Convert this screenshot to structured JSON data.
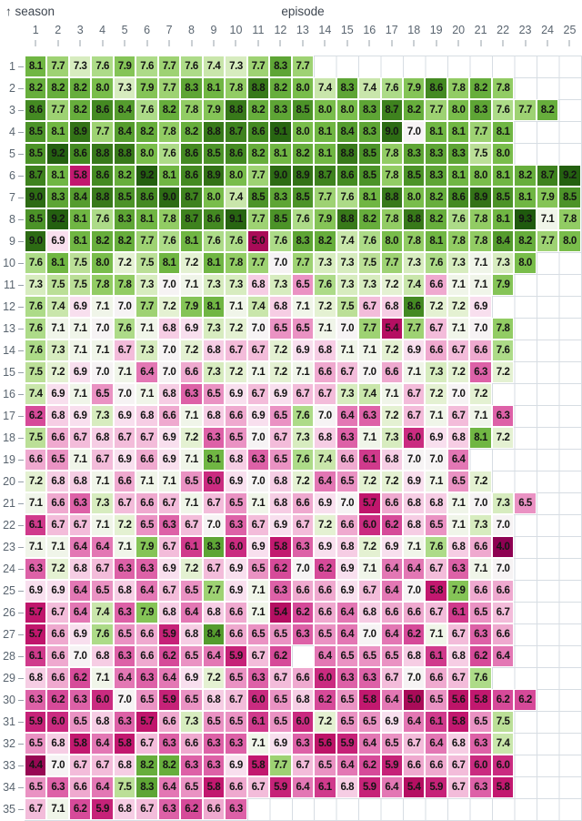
{
  "labels": {
    "season": "↑ season",
    "episode": "episode"
  },
  "chart_data": {
    "type": "heatmap",
    "x_label": "episode",
    "y_label": "season",
    "x_ticks": [
      1,
      2,
      3,
      4,
      5,
      6,
      7,
      8,
      9,
      10,
      11,
      12,
      13,
      14,
      15,
      16,
      17,
      18,
      19,
      20,
      21,
      22,
      23,
      24,
      25
    ],
    "y_ticks": [
      1,
      2,
      3,
      4,
      5,
      6,
      7,
      8,
      9,
      10,
      11,
      12,
      13,
      14,
      15,
      16,
      17,
      18,
      19,
      20,
      21,
      22,
      23,
      24,
      25,
      26,
      27,
      28,
      29,
      30,
      31,
      32,
      33,
      34,
      35
    ],
    "grid_on": true,
    "values": [
      [
        8.1,
        7.7,
        7.3,
        7.6,
        7.9,
        7.6,
        7.7,
        7.6,
        7.4,
        7.3,
        7.7,
        8.3,
        7.7
      ],
      [
        8.2,
        8.2,
        8.2,
        8.0,
        7.3,
        7.9,
        7.7,
        8.3,
        8.1,
        7.8,
        8.8,
        8.2,
        8.0,
        7.4,
        8.3,
        7.4,
        7.6,
        7.9,
        8.6,
        7.8,
        8.2,
        7.8
      ],
      [
        8.6,
        7.7,
        8.2,
        8.6,
        8.4,
        7.6,
        8.2,
        7.8,
        7.9,
        8.8,
        8.2,
        8.3,
        8.5,
        8.0,
        8.0,
        8.3,
        8.7,
        8.2,
        7.7,
        8.0,
        8.3,
        7.6,
        7.7,
        8.2
      ],
      [
        8.5,
        8.1,
        8.9,
        7.7,
        8.4,
        8.2,
        7.8,
        8.2,
        8.8,
        8.7,
        8.6,
        9.1,
        8.0,
        8.1,
        8.4,
        8.3,
        9.0,
        7.0,
        8.1,
        8.1,
        7.7,
        8.1
      ],
      [
        8.5,
        9.2,
        8.6,
        8.8,
        8.8,
        8.0,
        7.6,
        8.6,
        8.5,
        8.6,
        8.2,
        8.1,
        8.2,
        8.1,
        8.8,
        8.5,
        7.8,
        8.3,
        8.3,
        8.3,
        7.5,
        8.0
      ],
      [
        8.7,
        8.1,
        5.8,
        8.6,
        8.2,
        9.2,
        8.1,
        8.6,
        8.9,
        8.0,
        7.7,
        9.0,
        8.9,
        8.7,
        8.6,
        8.5,
        7.8,
        8.5,
        8.3,
        8.1,
        8.0,
        8.1,
        8.2,
        8.7,
        9.2
      ],
      [
        9.0,
        8.3,
        8.4,
        8.8,
        8.5,
        8.6,
        9.0,
        8.7,
        8.0,
        7.4,
        8.5,
        8.3,
        8.5,
        7.7,
        7.6,
        8.1,
        8.8,
        8.0,
        8.2,
        8.6,
        8.9,
        8.5,
        8.1,
        7.9,
        8.5
      ],
      [
        8.5,
        9.2,
        8.1,
        7.6,
        8.3,
        8.1,
        7.8,
        8.7,
        8.6,
        9.1,
        7.7,
        8.5,
        7.6,
        7.9,
        8.8,
        8.2,
        7.8,
        8.8,
        8.2,
        7.6,
        7.8,
        8.1,
        9.3,
        7.1,
        7.8
      ],
      [
        9.0,
        6.9,
        8.1,
        8.2,
        8.2,
        7.7,
        7.6,
        8.1,
        7.6,
        7.6,
        5.0,
        7.6,
        8.3,
        8.2,
        7.4,
        7.6,
        8.0,
        7.8,
        8.1,
        7.8,
        7.8,
        8.4,
        8.2,
        7.7,
        8.0
      ],
      [
        7.6,
        8.1,
        7.5,
        8.0,
        7.2,
        7.5,
        8.1,
        7.2,
        8.1,
        7.8,
        7.7,
        7.0,
        7.7,
        7.3,
        7.3,
        7.5,
        7.7,
        7.3,
        7.6,
        7.3,
        7.1,
        7.3,
        8.0
      ],
      [
        7.3,
        7.5,
        7.5,
        7.8,
        7.8,
        7.3,
        7.0,
        7.1,
        7.3,
        7.3,
        6.8,
        7.3,
        6.5,
        7.6,
        7.3,
        7.3,
        7.2,
        7.4,
        6.6,
        7.1,
        7.1,
        7.9
      ],
      [
        7.6,
        7.4,
        6.9,
        7.1,
        7.0,
        7.7,
        7.2,
        7.9,
        8.1,
        7.1,
        7.4,
        6.8,
        7.1,
        7.2,
        7.5,
        6.7,
        6.8,
        8.6,
        7.2,
        7.2,
        6.9
      ],
      [
        7.6,
        7.1,
        7.1,
        7.0,
        7.6,
        7.1,
        6.8,
        6.9,
        7.3,
        7.2,
        7.0,
        6.5,
        6.5,
        7.1,
        7.0,
        7.7,
        5.4,
        7.7,
        6.7,
        7.1,
        7.0,
        7.8
      ],
      [
        7.6,
        7.3,
        7.1,
        7.1,
        6.7,
        7.3,
        7.0,
        7.2,
        6.8,
        6.7,
        6.7,
        7.2,
        6.9,
        6.8,
        7.1,
        7.1,
        7.2,
        6.9,
        6.6,
        6.7,
        6.6,
        7.6
      ],
      [
        7.5,
        7.2,
        6.9,
        7.0,
        7.1,
        6.4,
        7.0,
        6.6,
        7.3,
        7.2,
        7.1,
        7.2,
        7.1,
        6.6,
        6.7,
        7.0,
        6.6,
        7.1,
        7.3,
        7.2,
        6.3,
        7.2
      ],
      [
        7.4,
        6.9,
        7.1,
        6.5,
        7.0,
        7.1,
        6.8,
        6.3,
        6.5,
        6.9,
        6.7,
        6.9,
        6.7,
        6.7,
        7.3,
        7.4,
        7.1,
        6.7,
        7.2,
        7.0,
        7.2
      ],
      [
        6.2,
        6.8,
        6.9,
        7.3,
        6.9,
        6.8,
        6.6,
        7.1,
        6.8,
        6.6,
        6.9,
        6.5,
        7.6,
        7.0,
        6.4,
        6.3,
        7.2,
        6.7,
        7.1,
        6.7,
        7.1,
        6.3
      ],
      [
        7.5,
        6.6,
        6.7,
        6.8,
        6.7,
        6.7,
        6.9,
        7.2,
        6.3,
        6.5,
        7.0,
        6.7,
        7.3,
        6.8,
        6.3,
        7.1,
        7.3,
        6.0,
        6.9,
        6.8,
        8.1,
        7.2
      ],
      [
        6.6,
        6.5,
        7.1,
        6.7,
        6.9,
        6.6,
        6.9,
        7.1,
        8.1,
        6.8,
        6.3,
        6.5,
        7.6,
        7.4,
        6.6,
        6.1,
        6.8,
        7.0,
        7.0,
        6.4
      ],
      [
        7.2,
        6.8,
        6.8,
        7.1,
        6.6,
        7.1,
        7.1,
        6.5,
        6.0,
        6.9,
        7.0,
        6.8,
        7.2,
        6.4,
        6.5,
        7.2,
        7.2,
        6.9,
        7.1,
        6.5,
        7.2
      ],
      [
        7.1,
        6.6,
        6.3,
        7.3,
        6.7,
        6.6,
        6.7,
        7.1,
        6.7,
        6.5,
        7.1,
        6.8,
        6.6,
        6.9,
        7.0,
        5.7,
        6.6,
        6.8,
        6.8,
        7.1,
        7.0,
        7.3,
        6.5
      ],
      [
        6.1,
        6.7,
        6.7,
        7.1,
        7.2,
        6.5,
        6.3,
        6.7,
        7.0,
        6.3,
        6.7,
        6.9,
        6.7,
        7.2,
        6.6,
        6.0,
        6.2,
        6.8,
        6.5,
        7.1,
        7.3,
        7.0
      ],
      [
        7.1,
        7.1,
        6.4,
        6.4,
        7.1,
        7.9,
        6.7,
        6.1,
        8.3,
        6.0,
        6.9,
        5.8,
        6.3,
        6.9,
        6.8,
        7.2,
        6.9,
        7.1,
        7.6,
        6.8,
        6.6,
        4.0
      ],
      [
        6.3,
        7.2,
        6.8,
        6.7,
        6.3,
        6.3,
        6.9,
        7.2,
        6.7,
        6.9,
        6.5,
        6.2,
        7.0,
        6.2,
        6.9,
        7.1,
        6.4,
        6.4,
        6.7,
        6.3,
        7.1,
        7.0
      ],
      [
        6.9,
        6.9,
        6.4,
        6.5,
        6.8,
        6.4,
        6.7,
        6.5,
        7.7,
        6.9,
        7.1,
        6.3,
        6.6,
        6.6,
        6.9,
        6.7,
        6.4,
        7.0,
        5.8,
        7.9,
        6.6,
        6.6
      ],
      [
        5.7,
        6.7,
        6.4,
        7.4,
        6.3,
        7.9,
        6.8,
        6.4,
        6.8,
        6.6,
        7.1,
        5.4,
        6.2,
        6.6,
        6.4,
        6.8,
        6.6,
        6.6,
        6.7,
        6.1,
        6.5,
        6.7
      ],
      [
        5.7,
        6.6,
        6.9,
        7.6,
        6.5,
        6.6,
        5.9,
        6.8,
        8.4,
        6.6,
        6.5,
        6.5,
        6.3,
        6.5,
        6.4,
        7.0,
        6.4,
        6.2,
        7.1,
        6.7,
        6.3,
        6.6
      ],
      [
        6.1,
        6.6,
        7.0,
        6.8,
        6.3,
        6.6,
        6.2,
        6.5,
        6.4,
        5.9,
        6.7,
        6.2,
        null,
        6.4,
        6.5,
        6.5,
        6.5,
        6.8,
        6.1,
        6.8,
        6.2,
        6.4
      ],
      [
        6.8,
        6.6,
        6.2,
        7.1,
        6.4,
        6.3,
        6.4,
        6.9,
        7.2,
        6.5,
        6.3,
        6.7,
        6.6,
        6.0,
        6.3,
        6.3,
        6.7,
        7.0,
        6.6,
        6.7,
        7.6
      ],
      [
        6.3,
        6.2,
        6.3,
        6.0,
        7.0,
        6.5,
        5.9,
        6.5,
        6.8,
        6.7,
        6.0,
        6.5,
        6.8,
        6.2,
        6.5,
        5.8,
        6.4,
        5.0,
        6.5,
        5.6,
        5.8,
        6.2,
        6.2
      ],
      [
        5.9,
        6.0,
        6.5,
        6.8,
        6.3,
        5.7,
        6.6,
        7.3,
        6.5,
        6.5,
        6.1,
        6.5,
        6.0,
        7.2,
        6.5,
        6.5,
        6.9,
        6.4,
        6.1,
        5.8,
        6.5,
        7.5
      ],
      [
        6.5,
        6.8,
        5.8,
        6.4,
        5.8,
        6.7,
        6.3,
        6.6,
        6.3,
        6.3,
        7.1,
        6.9,
        6.3,
        5.6,
        5.9,
        6.4,
        6.5,
        6.7,
        6.4,
        6.8,
        6.3,
        7.4
      ],
      [
        4.4,
        7.0,
        6.7,
        6.7,
        6.8,
        8.2,
        8.2,
        6.3,
        6.3,
        6.9,
        5.8,
        7.7,
        6.7,
        6.5,
        6.4,
        6.2,
        5.9,
        6.6,
        6.6,
        6.7,
        6.0,
        6.0
      ],
      [
        6.5,
        6.3,
        6.6,
        6.4,
        7.5,
        8.3,
        6.4,
        6.5,
        5.8,
        6.6,
        6.7,
        5.9,
        6.4,
        6.1,
        6.8,
        5.9,
        6.4,
        5.4,
        5.9,
        6.7,
        6.3,
        5.8
      ],
      [
        6.7,
        7.1,
        6.2,
        5.9,
        6.8,
        6.7,
        6.3,
        6.2,
        6.6,
        6.3
      ]
    ],
    "color_scale": {
      "description": "diverging green(high)-white-magenta(low)",
      "anchors": [
        {
          "v": 4.0,
          "c": "#8e0152"
        },
        {
          "v": 4.6,
          "c": "#9c0a53"
        },
        {
          "v": 5.0,
          "c": "#a90b58"
        },
        {
          "v": 5.4,
          "c": "#b50f62"
        },
        {
          "v": 5.6,
          "c": "#bd1468"
        },
        {
          "v": 5.8,
          "c": "#c2186f"
        },
        {
          "v": 6.0,
          "c": "#ca2b80"
        },
        {
          "v": 6.2,
          "c": "#d64a99"
        },
        {
          "v": 6.3,
          "c": "#dd61a7"
        },
        {
          "v": 6.4,
          "c": "#e377b4"
        },
        {
          "v": 6.5,
          "c": "#ea92c3"
        },
        {
          "v": 6.6,
          "c": "#efa9cf"
        },
        {
          "v": 6.7,
          "c": "#f3bcda"
        },
        {
          "v": 6.8,
          "c": "#f6cde4"
        },
        {
          "v": 6.9,
          "c": "#f8dfee"
        },
        {
          "v": 7.0,
          "c": "#f6f3f4"
        },
        {
          "v": 7.1,
          "c": "#f0f5e9"
        },
        {
          "v": 7.2,
          "c": "#e4f1d2"
        },
        {
          "v": 7.3,
          "c": "#d7ecbf"
        },
        {
          "v": 7.4,
          "c": "#c9e6ab"
        },
        {
          "v": 7.5,
          "c": "#bbdf97"
        },
        {
          "v": 7.6,
          "c": "#addb88"
        },
        {
          "v": 7.7,
          "c": "#9ed273"
        },
        {
          "v": 7.8,
          "c": "#92cc64"
        },
        {
          "v": 7.9,
          "c": "#85c457"
        },
        {
          "v": 8.0,
          "c": "#79bd4b"
        },
        {
          "v": 8.1,
          "c": "#70b643"
        },
        {
          "v": 8.2,
          "c": "#67ae3c"
        },
        {
          "v": 8.3,
          "c": "#5ea535"
        },
        {
          "v": 8.4,
          "c": "#559c2e"
        },
        {
          "v": 8.5,
          "c": "#4c9328"
        },
        {
          "v": 8.6,
          "c": "#448a22"
        },
        {
          "v": 8.8,
          "c": "#38791a"
        },
        {
          "v": 9.0,
          "c": "#2d6b14"
        },
        {
          "v": 9.3,
          "c": "#1f5a0e"
        }
      ]
    }
  }
}
